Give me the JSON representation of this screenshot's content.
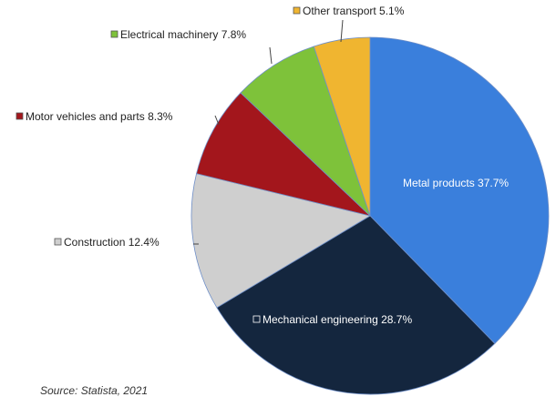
{
  "chart_data": {
    "type": "pie",
    "title": "",
    "unit": "%",
    "start_angle_deg": 0,
    "direction": "clockwise",
    "slices": [
      {
        "label": "Metal products 37.7%",
        "name": "Metal products",
        "value": 37.7,
        "color": "#3a7fdc",
        "label_inside": true
      },
      {
        "label": "Mechanical engineering 28.7%",
        "name": "Mechanical engineering",
        "value": 28.7,
        "color": "#14263e",
        "label_inside": true
      },
      {
        "label": "Construction 12.4%",
        "name": "Construction",
        "value": 12.4,
        "color": "#cfcfcf",
        "label_inside": false
      },
      {
        "label": "Motor vehicles and parts 8.3%",
        "name": "Motor vehicles and parts",
        "value": 8.3,
        "color": "#a3161c",
        "label_inside": false
      },
      {
        "label": "Electrical machinery 7.8%",
        "name": "Electrical machinery",
        "value": 7.8,
        "color": "#7ec23a",
        "label_inside": false
      },
      {
        "label": "Other transport 5.1%",
        "name": "Other transport",
        "value": 5.1,
        "color": "#f0b530",
        "label_inside": false
      }
    ],
    "legend": "inline-labels"
  },
  "source": "Source: Statista, 2021"
}
